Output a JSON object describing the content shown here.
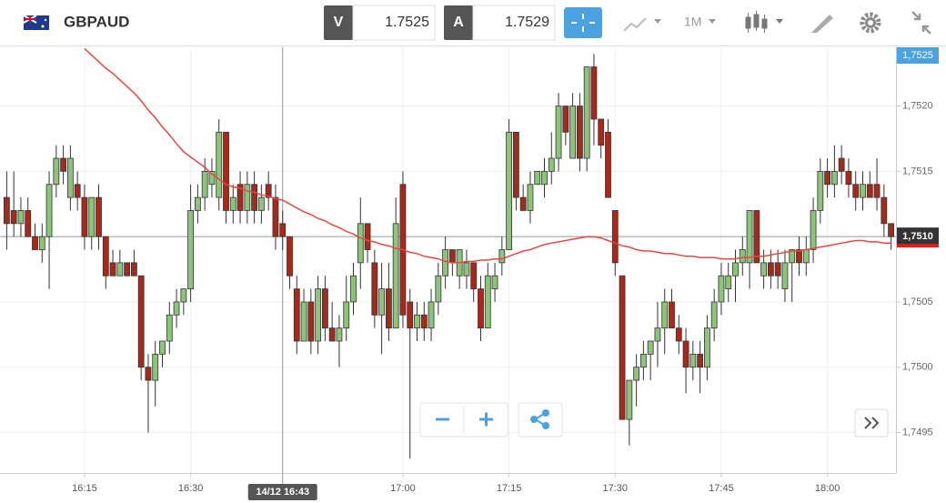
{
  "toolbar": {
    "symbol": "GBPAUD",
    "sell_label": "V",
    "sell_price": 1.7525,
    "buy_label": "A",
    "buy_price": 1.7529,
    "timeframe": "1M"
  },
  "chart_data": {
    "type": "candlestick",
    "up_color": "#8cc47c",
    "down_color": "#a32a1c",
    "ma_color": "#e8473f",
    "categories": [
      null,
      null,
      null,
      null,
      null,
      null,
      null,
      null,
      null,
      null,
      null,
      "16:15",
      null,
      null,
      null,
      null,
      null,
      null,
      null,
      null,
      null,
      null,
      null,
      null,
      null,
      null,
      "16:30",
      null,
      null,
      null,
      null,
      null,
      null,
      null,
      null,
      null,
      null,
      null,
      null,
      "14/12 16:43",
      null,
      null,
      null,
      null,
      null,
      null,
      null,
      null,
      null,
      null,
      null,
      null,
      null,
      null,
      null,
      null,
      "17:00",
      null,
      null,
      null,
      null,
      null,
      null,
      null,
      null,
      null,
      null,
      null,
      null,
      null,
      null,
      "17:15",
      null,
      null,
      null,
      null,
      null,
      null,
      null,
      null,
      null,
      null,
      null,
      null,
      null,
      null,
      "17:30",
      null,
      null,
      null,
      null,
      null,
      null,
      null,
      null,
      null,
      null,
      null,
      null,
      null,
      null,
      "17:45",
      null,
      null,
      null,
      null,
      null,
      null,
      null,
      null,
      null,
      null,
      null,
      null,
      null,
      null,
      "18:00",
      null,
      null,
      null,
      null,
      null,
      null,
      null,
      null,
      null
    ],
    "highlight_category": 39,
    "ohlc": [
      [
        1.7513,
        1.7515,
        1.7509,
        1.7511
      ],
      [
        1.7512,
        1.7515,
        1.751,
        1.7511
      ],
      [
        1.7511,
        1.7513,
        1.751,
        1.7512
      ],
      [
        1.7512,
        1.7513,
        1.751,
        1.751
      ],
      [
        1.751,
        1.7511,
        1.7509,
        1.7509
      ],
      [
        1.7509,
        1.7511,
        1.7508,
        1.751
      ],
      [
        1.751,
        1.7515,
        1.7506,
        1.7514
      ],
      [
        1.7514,
        1.7517,
        1.7513,
        1.7516
      ],
      [
        1.7516,
        1.7517,
        1.7514,
        1.7515
      ],
      [
        1.7513,
        1.7517,
        1.7512,
        1.7516
      ],
      [
        1.7514,
        1.7515,
        1.7512,
        1.7513
      ],
      [
        1.7513,
        1.7514,
        1.7509,
        1.751
      ],
      [
        1.751,
        1.7513,
        1.7509,
        1.7513
      ],
      [
        1.7513,
        1.7514,
        1.7509,
        1.751
      ],
      [
        1.751,
        1.751,
        1.7506,
        1.7507
      ],
      [
        1.7508,
        1.7509,
        1.7507,
        1.7507
      ],
      [
        1.7507,
        1.7509,
        1.7507,
        1.7508
      ],
      [
        1.7508,
        1.7508,
        1.7507,
        1.7507
      ],
      [
        1.7508,
        1.7509,
        1.7507,
        1.7507
      ],
      [
        1.7507,
        1.7507,
        1.7499,
        1.75
      ],
      [
        1.75,
        1.7501,
        1.7495,
        1.7499
      ],
      [
        1.7499,
        1.7502,
        1.7497,
        1.7501
      ],
      [
        1.7501,
        1.7502,
        1.75,
        1.7502
      ],
      [
        1.7502,
        1.7505,
        1.7501,
        1.7504
      ],
      [
        1.7504,
        1.7506,
        1.7503,
        1.7505
      ],
      [
        1.7505,
        1.7506,
        1.7504,
        1.7506
      ],
      [
        1.7506,
        1.7514,
        1.7505,
        1.7512
      ],
      [
        1.7512,
        1.7514,
        1.7511,
        1.7513
      ],
      [
        1.7513,
        1.7516,
        1.7512,
        1.7515
      ],
      [
        1.7514,
        1.7516,
        1.7513,
        1.7515
      ],
      [
        1.7513,
        1.7519,
        1.7512,
        1.7518
      ],
      [
        1.7518,
        1.7518,
        1.7511,
        1.7512
      ],
      [
        1.7512,
        1.7514,
        1.7511,
        1.7513
      ],
      [
        1.7514,
        1.7515,
        1.7511,
        1.7512
      ],
      [
        1.7512,
        1.7515,
        1.7511,
        1.7514
      ],
      [
        1.7514,
        1.7515,
        1.7511,
        1.7512
      ],
      [
        1.7512,
        1.7514,
        1.7511,
        1.7513
      ],
      [
        1.7514,
        1.7515,
        1.7512,
        1.7513
      ],
      [
        1.7513,
        1.7514,
        1.7509,
        1.751
      ],
      [
        1.7511,
        1.7512,
        1.7509,
        1.751
      ],
      [
        1.751,
        1.751,
        1.7506,
        1.7507
      ],
      [
        1.7506,
        1.7507,
        1.7501,
        1.7502
      ],
      [
        1.7502,
        1.7506,
        1.7502,
        1.7505
      ],
      [
        1.7505,
        1.7506,
        1.7501,
        1.7502
      ],
      [
        1.7502,
        1.7507,
        1.7501,
        1.7506
      ],
      [
        1.7506,
        1.7507,
        1.7502,
        1.7503
      ],
      [
        1.7503,
        1.7505,
        1.7502,
        1.7502
      ],
      [
        1.7502,
        1.7504,
        1.75,
        1.7503
      ],
      [
        1.7503,
        1.7507,
        1.7502,
        1.7505
      ],
      [
        1.7505,
        1.7508,
        1.7504,
        1.7507
      ],
      [
        1.7508,
        1.7513,
        1.7506,
        1.7511
      ],
      [
        1.7511,
        1.7511,
        1.7508,
        1.7509
      ],
      [
        1.7508,
        1.7509,
        1.7503,
        1.7504
      ],
      [
        1.7504,
        1.7508,
        1.7501,
        1.7506
      ],
      [
        1.7506,
        1.7508,
        1.7502,
        1.7503
      ],
      [
        1.7503,
        1.7513,
        1.7503,
        1.7511
      ],
      [
        1.7514,
        1.7515,
        1.7503,
        1.7504
      ],
      [
        1.7505,
        1.7506,
        1.7493,
        1.7503
      ],
      [
        1.7503,
        1.7505,
        1.7502,
        1.7504
      ],
      [
        1.7504,
        1.7505,
        1.7502,
        1.7503
      ],
      [
        1.7503,
        1.7506,
        1.7502,
        1.7505
      ],
      [
        1.7505,
        1.7508,
        1.7504,
        1.7507
      ],
      [
        1.7507,
        1.751,
        1.7506,
        1.7509
      ],
      [
        1.7509,
        1.7509,
        1.7507,
        1.7508
      ],
      [
        1.7507,
        1.7509,
        1.7506,
        1.7509
      ],
      [
        1.7507,
        1.7509,
        1.7506,
        1.7508
      ],
      [
        1.7508,
        1.7508,
        1.7505,
        1.7506
      ],
      [
        1.7506,
        1.7507,
        1.7502,
        1.7503
      ],
      [
        1.7503,
        1.7508,
        1.7503,
        1.7507
      ],
      [
        1.7506,
        1.7508,
        1.7505,
        1.7507
      ],
      [
        1.7508,
        1.751,
        1.7507,
        1.7509
      ],
      [
        1.7509,
        1.7519,
        1.7509,
        1.7518
      ],
      [
        1.7518,
        1.7518,
        1.7512,
        1.7513
      ],
      [
        1.7513,
        1.7514,
        1.7512,
        1.7512
      ],
      [
        1.7512,
        1.7515,
        1.7511,
        1.7514
      ],
      [
        1.7514,
        1.7515,
        1.7514,
        1.7515
      ],
      [
        1.7514,
        1.7516,
        1.7513,
        1.7515
      ],
      [
        1.7515,
        1.7518,
        1.7514,
        1.7516
      ],
      [
        1.7516,
        1.7521,
        1.7515,
        1.752
      ],
      [
        1.752,
        1.752,
        1.7517,
        1.7518
      ],
      [
        1.7516,
        1.7521,
        1.7516,
        1.752
      ],
      [
        1.752,
        1.7521,
        1.7515,
        1.7516
      ],
      [
        1.7516,
        1.7523,
        1.7515,
        1.7523
      ],
      [
        1.7523,
        1.7524,
        1.7517,
        1.7519
      ],
      [
        1.7519,
        1.7519,
        1.7516,
        1.7517
      ],
      [
        1.7518,
        1.7519,
        1.7513,
        1.7513
      ],
      [
        1.7512,
        1.7512,
        1.7507,
        1.7508
      ],
      [
        1.7507,
        1.7507,
        1.7496,
        1.7496
      ],
      [
        1.7496,
        1.7499,
        1.7494,
        1.7499
      ],
      [
        1.7499,
        1.7501,
        1.7497,
        1.75
      ],
      [
        1.75,
        1.7502,
        1.7499,
        1.7501
      ],
      [
        1.7501,
        1.7502,
        1.7499,
        1.7502
      ],
      [
        1.7502,
        1.7505,
        1.75,
        1.7503
      ],
      [
        1.7503,
        1.7506,
        1.7501,
        1.7505
      ],
      [
        1.7505,
        1.7506,
        1.7503,
        1.7503
      ],
      [
        1.7503,
        1.7504,
        1.7501,
        1.7502
      ],
      [
        1.7502,
        1.7503,
        1.7498,
        1.75
      ],
      [
        1.75,
        1.7502,
        1.7499,
        1.7501
      ],
      [
        1.7501,
        1.7502,
        1.7498,
        1.75
      ],
      [
        1.75,
        1.7504,
        1.7499,
        1.7503
      ],
      [
        1.7503,
        1.7506,
        1.7502,
        1.7505
      ],
      [
        1.7505,
        1.7508,
        1.7504,
        1.7507
      ],
      [
        1.7506,
        1.7508,
        1.7505,
        1.7507
      ],
      [
        1.7507,
        1.7509,
        1.7505,
        1.7508
      ],
      [
        1.7508,
        1.751,
        1.7507,
        1.7509
      ],
      [
        1.7508,
        1.7512,
        1.7506,
        1.7512
      ],
      [
        1.7512,
        1.7512,
        1.7508,
        1.7508
      ],
      [
        1.7507,
        1.7509,
        1.7506,
        1.7508
      ],
      [
        1.7508,
        1.7509,
        1.7506,
        1.7507
      ],
      [
        1.7508,
        1.7509,
        1.7506,
        1.7507
      ],
      [
        1.7506,
        1.7509,
        1.7505,
        1.7508
      ],
      [
        1.7508,
        1.7509,
        1.7505,
        1.7509
      ],
      [
        1.7509,
        1.751,
        1.7507,
        1.7508
      ],
      [
        1.7508,
        1.751,
        1.7507,
        1.7509
      ],
      [
        1.7509,
        1.7513,
        1.7508,
        1.7512
      ],
      [
        1.7512,
        1.7516,
        1.7511,
        1.7515
      ],
      [
        1.7515,
        1.7516,
        1.7513,
        1.7514
      ],
      [
        1.7514,
        1.7517,
        1.7513,
        1.7515
      ],
      [
        1.7516,
        1.7517,
        1.7514,
        1.7515
      ],
      [
        1.7515,
        1.7516,
        1.7513,
        1.7514
      ],
      [
        1.7514,
        1.7515,
        1.7512,
        1.7513
      ],
      [
        1.7513,
        1.7515,
        1.7512,
        1.7514
      ],
      [
        1.7514,
        1.7515,
        1.7513,
        1.7513
      ],
      [
        1.7514,
        1.7516,
        1.7512,
        1.7513
      ],
      [
        1.7513,
        1.7514,
        1.751,
        1.7511
      ],
      [
        1.7511,
        1.7511,
        1.7509,
        1.751
      ]
    ],
    "ma": [
      null,
      null,
      null,
      null,
      null,
      null,
      null,
      null,
      null,
      null,
      null,
      1.75244,
      1.75239,
      1.75234,
      1.75229,
      1.75225,
      1.7522,
      1.75215,
      1.7521,
      1.75204,
      1.75197,
      1.75191,
      1.75184,
      1.75178,
      1.75171,
      1.75165,
      1.75161,
      1.75157,
      1.75153,
      1.75148,
      1.75144,
      1.7514,
      1.75138,
      1.75137,
      1.75135,
      1.75134,
      1.75132,
      1.75131,
      1.75129,
      1.75128,
      1.75125,
      1.75122,
      1.75119,
      1.75117,
      1.75114,
      1.75112,
      1.75109,
      1.75107,
      1.75104,
      1.75102,
      1.75099,
      1.75097,
      1.75096,
      1.75094,
      1.75093,
      1.75091,
      1.7509,
      1.75088,
      1.75087,
      1.75085,
      1.75084,
      1.75083,
      1.75081,
      1.7508,
      1.7508,
      1.75081,
      1.75081,
      1.75082,
      1.75082,
      1.75083,
      1.75083,
      1.75085,
      1.75087,
      1.75089,
      1.7509,
      1.75092,
      1.75094,
      1.75095,
      1.75096,
      1.75097,
      1.75098,
      1.75099,
      1.751,
      1.751,
      1.75099,
      1.75097,
      1.75095,
      1.75093,
      1.75092,
      1.7509,
      1.75089,
      1.75089,
      1.75088,
      1.75087,
      1.75087,
      1.75086,
      1.75085,
      1.75085,
      1.75084,
      1.75084,
      1.75084,
      1.75083,
      1.75083,
      1.75083,
      1.75084,
      1.75084,
      1.75085,
      1.75085,
      1.75086,
      1.75087,
      1.75088,
      1.75089,
      1.75089,
      1.7509,
      1.75091,
      1.75092,
      1.75093,
      1.75094,
      1.75095,
      1.75096,
      1.75097,
      1.75097,
      1.75096,
      1.75096,
      1.75095,
      1.75095
    ],
    "ylim": [
      1.74919,
      1.75245
    ],
    "yticks": [
      {
        "value": 1.7495,
        "label": "1,7495"
      },
      {
        "value": 1.75,
        "label": "1,7500"
      },
      {
        "value": 1.7505,
        "label": "1,7505"
      },
      {
        "value": 1.751,
        "label": "1,7510"
      },
      {
        "value": 1.7515,
        "label": "1,7515"
      },
      {
        "value": 1.752,
        "label": "1,7520"
      }
    ],
    "last_price": {
      "value": 1.751,
      "label": "1,7510"
    },
    "sell_badge": {
      "value": 1.7525,
      "label": "1,7525"
    },
    "grid": true
  }
}
